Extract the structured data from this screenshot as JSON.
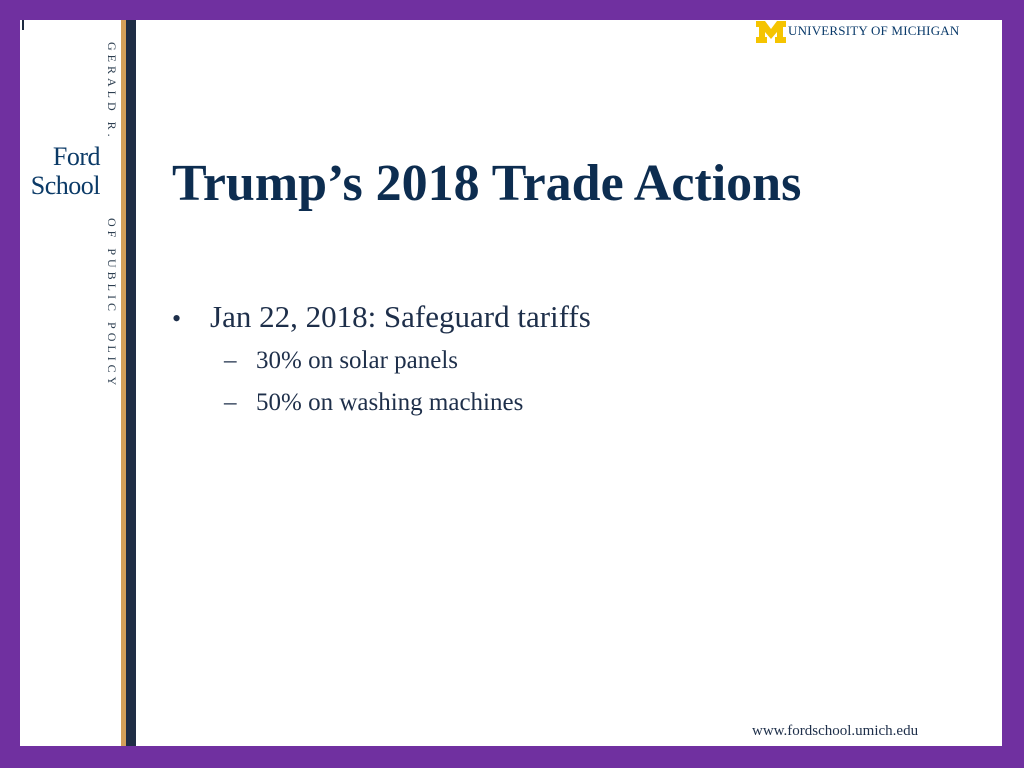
{
  "branding": {
    "school_top": "GERALD R.",
    "school_name_line1": "Ford",
    "school_name_line2": "School",
    "school_bottom": "OF PUBLIC POLICY",
    "university": "UNIVERSITY OF MICHIGAN",
    "um_logo_color": "#f5c400"
  },
  "slide": {
    "title": "Trump’s 2018 Trade Actions",
    "bullets": [
      {
        "marker": "•",
        "text": "Jan 22, 2018:  Safeguard tariffs",
        "sub": [
          {
            "marker": "–",
            "text": "30% on solar panels"
          },
          {
            "marker": "–",
            "text": "50% on washing machines"
          }
        ]
      }
    ]
  },
  "footer": {
    "url": "www.fordschool.umich.edu"
  },
  "colors": {
    "frame": "#7030a0",
    "title": "#0d2d50",
    "gold_stripe": "#d4a05a",
    "navy_stripe": "#1f2d45"
  }
}
